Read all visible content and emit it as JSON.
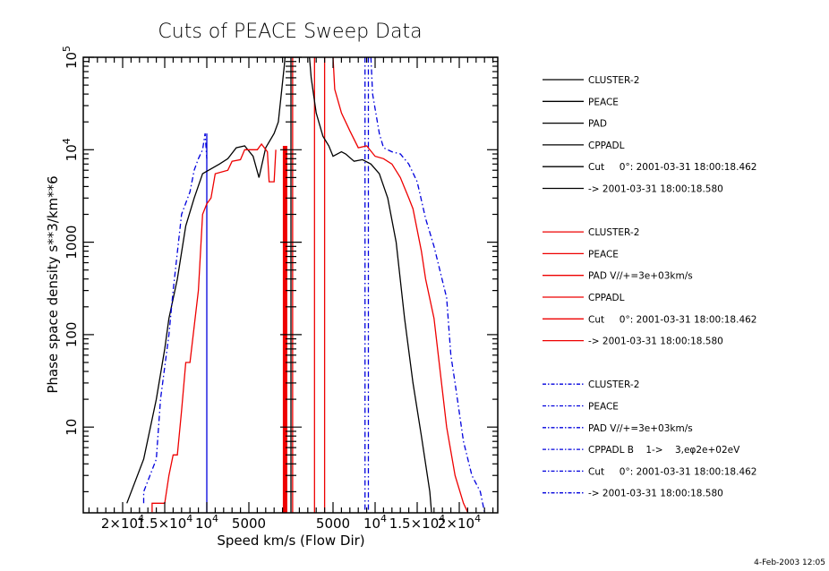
{
  "chart_data": {
    "type": "line",
    "title": "Cuts of PEACE Sweep Data",
    "xlabel": "Speed km/s (Flow Dir)",
    "ylabel": "Phase space density s**3/km**6",
    "yscale": "log",
    "ylim": [
      1.2,
      100000
    ],
    "xlim": [
      -24000,
      24000
    ],
    "y_ticks": [
      {
        "value": 10,
        "label": "10"
      },
      {
        "value": 100,
        "label": "100"
      },
      {
        "value": 1000,
        "label": "1000"
      },
      {
        "value": 10000,
        "label": "10^4"
      },
      {
        "value": 100000,
        "label": "10^5"
      }
    ],
    "x_ticks": [
      {
        "value": -20000,
        "label": "2×10^4"
      },
      {
        "value": -15000,
        "label": "1.5×10^4"
      },
      {
        "value": -10000,
        "label": "10^4"
      },
      {
        "value": -5000,
        "label": "5000"
      },
      {
        "value": 5000,
        "label": "5000"
      },
      {
        "value": 10000,
        "label": "10^4"
      },
      {
        "value": 15000,
        "label": "1.5×10^4"
      },
      {
        "value": 20000,
        "label": "2×10^4"
      }
    ],
    "series": [
      {
        "name": "CLUSTER-2 PEACE PAD CPPADL (black)",
        "color": "#000000",
        "style": "solid",
        "points": [
          [
            -19500,
            1.5
          ],
          [
            -17500,
            4.5
          ],
          [
            -16000,
            20
          ],
          [
            -15000,
            70
          ],
          [
            -14500,
            150
          ],
          [
            -13500,
            400
          ],
          [
            -12500,
            1500
          ],
          [
            -11500,
            3000
          ],
          [
            -10500,
            5500
          ],
          [
            -9500,
            6200
          ],
          [
            -8500,
            7000
          ],
          [
            -7500,
            8000
          ],
          [
            -6500,
            10500
          ],
          [
            -5500,
            11000
          ],
          [
            -4500,
            8500
          ],
          [
            -3800,
            5000
          ],
          [
            -3000,
            10500
          ],
          [
            -2000,
            15000
          ],
          [
            -1500,
            20000
          ],
          [
            -800,
            80000
          ],
          [
            -700,
            100000
          ]
        ]
      },
      {
        "name": "CLUSTER-2 PEACE PAD CPPADL right (black)",
        "color": "#000000",
        "style": "solid",
        "points": [
          [
            2200,
            100000
          ],
          [
            2400,
            60000
          ],
          [
            3000,
            25000
          ],
          [
            3800,
            14000
          ],
          [
            4500,
            11000
          ],
          [
            5000,
            8500
          ],
          [
            6000,
            9500
          ],
          [
            6500,
            9000
          ],
          [
            7500,
            7500
          ],
          [
            8500,
            7800
          ],
          [
            9500,
            7000
          ],
          [
            10500,
            5500
          ],
          [
            11500,
            3000
          ],
          [
            12500,
            1000
          ],
          [
            13500,
            150
          ],
          [
            14500,
            30
          ],
          [
            15500,
            8
          ],
          [
            16500,
            2
          ],
          [
            16700,
            1.2
          ]
        ]
      },
      {
        "name": "CLUSTER-2 PEACE PAD V//+=3e+03km/s (red)",
        "color": "#ee0000",
        "style": "solid",
        "points": [
          [
            -16500,
            1.2
          ],
          [
            -16500,
            1.5
          ],
          [
            -15000,
            1.5
          ],
          [
            -14500,
            3
          ],
          [
            -14000,
            5
          ],
          [
            -13500,
            5
          ],
          [
            -13000,
            15
          ],
          [
            -12500,
            50
          ],
          [
            -12000,
            50
          ],
          [
            -11000,
            300
          ],
          [
            -10500,
            2000
          ],
          [
            -10000,
            2600
          ],
          [
            -9500,
            3000
          ],
          [
            -9000,
            5500
          ],
          [
            -7500,
            6000
          ],
          [
            -7000,
            7500
          ],
          [
            -6000,
            7800
          ],
          [
            -5500,
            10000
          ],
          [
            -4000,
            10000
          ],
          [
            -3500,
            11500
          ],
          [
            -2800,
            9500
          ],
          [
            -2600,
            4500
          ],
          [
            -2000,
            4500
          ],
          [
            -1800,
            10000
          ]
        ]
      },
      {
        "name": "CLUSTER-2 PEACE PAD right (red)",
        "color": "#ee0000",
        "style": "solid",
        "points": [
          [
            5000,
            100000
          ],
          [
            5200,
            45000
          ],
          [
            6000,
            25000
          ],
          [
            7000,
            16000
          ],
          [
            8000,
            10500
          ],
          [
            9000,
            11000
          ],
          [
            10000,
            8500
          ],
          [
            11000,
            8000
          ],
          [
            12000,
            7000
          ],
          [
            13000,
            5000
          ],
          [
            14000,
            3000
          ],
          [
            14500,
            2300
          ],
          [
            15500,
            800
          ],
          [
            16000,
            400
          ],
          [
            17000,
            150
          ],
          [
            18500,
            10
          ],
          [
            19500,
            3
          ],
          [
            20500,
            1.5
          ],
          [
            21000,
            1.2
          ]
        ]
      },
      {
        "name": "CLUSTER-2 PEACE PAD V//+=3e+03km/s CPPADL B 1-> 3,eφ2e+02eV (blue)",
        "color": "#0000dd",
        "style": "dashdot",
        "points": [
          [
            -17500,
            1.5
          ],
          [
            -17500,
            2
          ],
          [
            -16000,
            4.5
          ],
          [
            -15500,
            20
          ],
          [
            -14500,
            100
          ],
          [
            -14000,
            300
          ],
          [
            -13000,
            2000
          ],
          [
            -12000,
            3500
          ],
          [
            -11500,
            6000
          ],
          [
            -11000,
            8000
          ],
          [
            -10500,
            10000
          ],
          [
            -10200,
            15000
          ],
          [
            -10000,
            8000
          ]
        ]
      },
      {
        "name": "CLUSTER-2 PEACE PAD right (blue)",
        "color": "#0000dd",
        "style": "dashdot",
        "points": [
          [
            9500,
            100000
          ],
          [
            9700,
            40000
          ],
          [
            10500,
            15000
          ],
          [
            11000,
            10500
          ],
          [
            12000,
            9500
          ],
          [
            13000,
            9000
          ],
          [
            14000,
            7000
          ],
          [
            15000,
            4500
          ],
          [
            16000,
            1800
          ],
          [
            17000,
            900
          ],
          [
            18500,
            250
          ],
          [
            19000,
            60
          ],
          [
            19500,
            30
          ],
          [
            20500,
            7
          ],
          [
            21500,
            3
          ],
          [
            22500,
            2
          ],
          [
            23000,
            1.2
          ]
        ]
      }
    ],
    "vertical_markers": [
      {
        "x": -10000,
        "color": "#0000dd",
        "style": "solid",
        "from": 1.2,
        "to": 15000
      },
      {
        "x": -700,
        "color": "#ee0000",
        "style": "thick",
        "from": 1.2,
        "to": 11000
      },
      {
        "x": 200,
        "color": "#ee0000",
        "style": "solid",
        "from": 1.2,
        "to": 100000
      },
      {
        "x": 2800,
        "color": "#ee0000",
        "style": "solid",
        "from": 1.2,
        "to": 100000
      },
      {
        "x": 4000,
        "color": "#ee0000",
        "style": "solid",
        "from": 1.2,
        "to": 100000
      },
      {
        "x": 8800,
        "color": "#0000dd",
        "style": "dashdot",
        "from": 1.2,
        "to": 100000
      },
      {
        "x": 9200,
        "color": "#0000dd",
        "style": "dashdot",
        "from": 1.2,
        "to": 100000
      }
    ],
    "legend": {
      "placement": "right",
      "groups": [
        {
          "color": "#000000",
          "style": "solid",
          "entries": [
            "CLUSTER-2",
            "PEACE",
            "PAD",
            "CPPADL",
            "Cut     0°: 2001-03-31 18:00:18.462",
            "-> 2001-03-31 18:00:18.580"
          ]
        },
        {
          "color": "#ee0000",
          "style": "solid",
          "entries": [
            "CLUSTER-2",
            "PEACE",
            "PAD V//+=3e+03km/s",
            "CPPADL",
            "Cut     0°: 2001-03-31 18:00:18.462",
            "-> 2001-03-31 18:00:18.580"
          ]
        },
        {
          "color": "#0000dd",
          "style": "dashdot",
          "entries": [
            "CLUSTER-2",
            "PEACE",
            "PAD V//+=3e+03km/s",
            "CPPADL B    1->    3,eφ2e+02eV",
            "Cut     0°: 2001-03-31 18:00:18.462",
            "-> 2001-03-31 18:00:18.580"
          ]
        }
      ]
    },
    "timestamp": "4-Feb-2003 12:05"
  }
}
